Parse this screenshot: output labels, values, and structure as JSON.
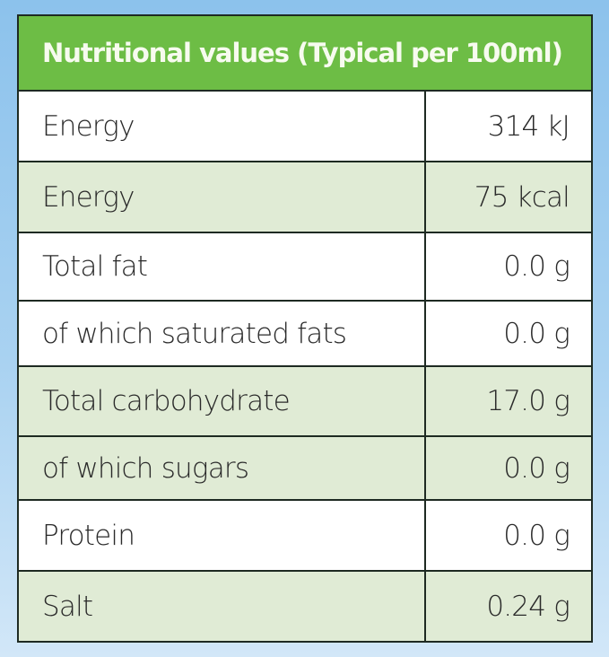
{
  "title": "Nutritional values (Typical per 100ml)",
  "colors": {
    "header": "#6dbd45",
    "row_alt": "#e0ebd5",
    "background": "#8cc2ec"
  },
  "rows": [
    {
      "label": "Energy",
      "value": "314 kJ",
      "shaded": false
    },
    {
      "label": "Energy",
      "value": "75 kcal",
      "shaded": true
    },
    {
      "label": "Total fat",
      "value": "0.0 g",
      "shaded": false
    },
    {
      "label": "of which saturated fats",
      "value": "0.0 g",
      "shaded": false
    },
    {
      "label": "Total carbohydrate",
      "value": "17.0 g",
      "shaded": true
    },
    {
      "label": "of which sugars",
      "value": "0.0 g",
      "shaded": true
    },
    {
      "label": "Protein",
      "value": "0.0 g",
      "shaded": false
    },
    {
      "label": "Salt",
      "value": "0.24 g",
      "shaded": true
    }
  ]
}
